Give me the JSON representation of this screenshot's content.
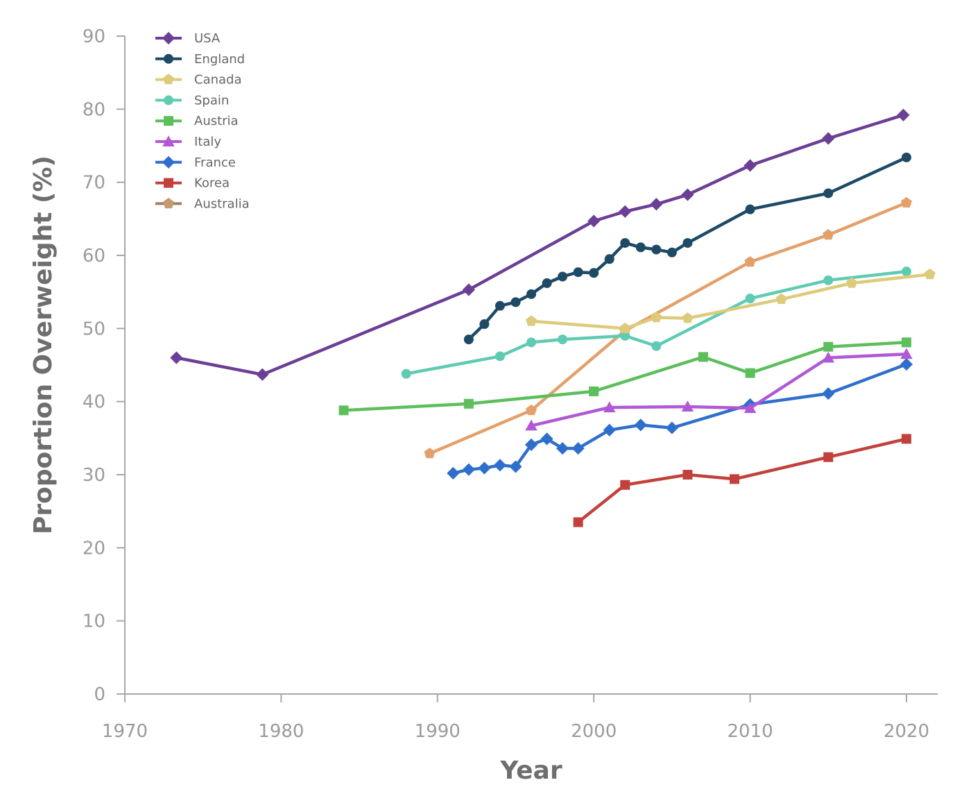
{
  "chart_data": {
    "type": "line",
    "title": "",
    "xlabel": "Year",
    "ylabel": "Proportion Overweight (%)",
    "xlim": [
      1970,
      2022
    ],
    "ylim": [
      0,
      90
    ],
    "xticks": [
      1970,
      1980,
      1990,
      2000,
      2010,
      2020
    ],
    "yticks": [
      0,
      10,
      20,
      30,
      40,
      50,
      60,
      70,
      80,
      90
    ],
    "grid": false,
    "legend_position": "top-left",
    "series": [
      {
        "name": "USA",
        "color": "#6b3f96",
        "marker": "diamond",
        "x": [
          1973.3,
          1978.8,
          1992,
          2000,
          2002,
          2004,
          2006,
          2010,
          2015,
          2019.8
        ],
        "y": [
          46,
          43.7,
          55.3,
          64.7,
          66,
          67,
          68.3,
          72.3,
          76,
          79.2
        ]
      },
      {
        "name": "England",
        "color": "#1e4a66",
        "marker": "circle",
        "x": [
          1992,
          1993,
          1994,
          1995,
          1996,
          1997,
          1998,
          1999,
          2000,
          2001,
          2002,
          2003,
          2004,
          2005,
          2006,
          2010,
          2015,
          2020
        ],
        "y": [
          48.5,
          50.6,
          53.1,
          53.6,
          54.7,
          56.2,
          57.1,
          57.7,
          57.6,
          59.5,
          61.7,
          61.1,
          60.8,
          60.4,
          61.7,
          66.3,
          68.5,
          73.4
        ]
      },
      {
        "name": "Canada",
        "color": "#ddcb7c",
        "marker": "pentagon",
        "x": [
          1996,
          2002,
          2004,
          2006,
          2012,
          2016.5,
          2021.5
        ],
        "y": [
          51,
          50,
          51.5,
          51.4,
          54,
          56.2,
          57.4
        ]
      },
      {
        "name": "Spain",
        "color": "#5fcbb2",
        "marker": "circle",
        "x": [
          1988,
          1994,
          1996,
          1998,
          2002,
          2004,
          2010,
          2015,
          2020
        ],
        "y": [
          43.8,
          46.2,
          48.1,
          48.5,
          49,
          47.6,
          54.1,
          56.6,
          57.8
        ]
      },
      {
        "name": "Austria",
        "color": "#5cbf5c",
        "marker": "square",
        "x": [
          1984,
          1992,
          2000,
          2007,
          2010,
          2015,
          2020
        ],
        "y": [
          38.8,
          39.7,
          41.4,
          46.1,
          43.9,
          47.5,
          48.1
        ]
      },
      {
        "name": "Italy",
        "color": "#b058d6",
        "marker": "triangle",
        "x": [
          1996,
          2001,
          2006,
          2010,
          2015,
          2020
        ],
        "y": [
          36.7,
          39.2,
          39.3,
          39.1,
          46,
          46.5
        ]
      },
      {
        "name": "France",
        "color": "#2f6fcc",
        "marker": "diamond",
        "x": [
          1991,
          1992,
          1993,
          1994,
          1995,
          1996,
          1997,
          1998,
          1999,
          2001,
          2003,
          2005,
          2010,
          2015,
          2020
        ],
        "y": [
          30.2,
          30.7,
          30.9,
          31.3,
          31.1,
          34.1,
          34.9,
          33.6,
          33.6,
          36.1,
          36.8,
          36.4,
          39.6,
          41.1,
          45.1
        ]
      },
      {
        "name": "Korea",
        "color": "#c2413b",
        "marker": "square",
        "x": [
          1999,
          2002,
          2006,
          2009,
          2015,
          2020
        ],
        "y": [
          23.5,
          28.6,
          30,
          29.4,
          32.4,
          34.9
        ]
      },
      {
        "name": "Australia",
        "color": "#e4a06a",
        "legend_color": "#a27f60",
        "legend_marker_color": "#c49a71",
        "marker": "pentagon",
        "x": [
          1989.5,
          1996,
          2002,
          2010,
          2015,
          2020
        ],
        "y": [
          32.9,
          38.8,
          49.7,
          59.1,
          62.8,
          67.2
        ]
      }
    ]
  }
}
